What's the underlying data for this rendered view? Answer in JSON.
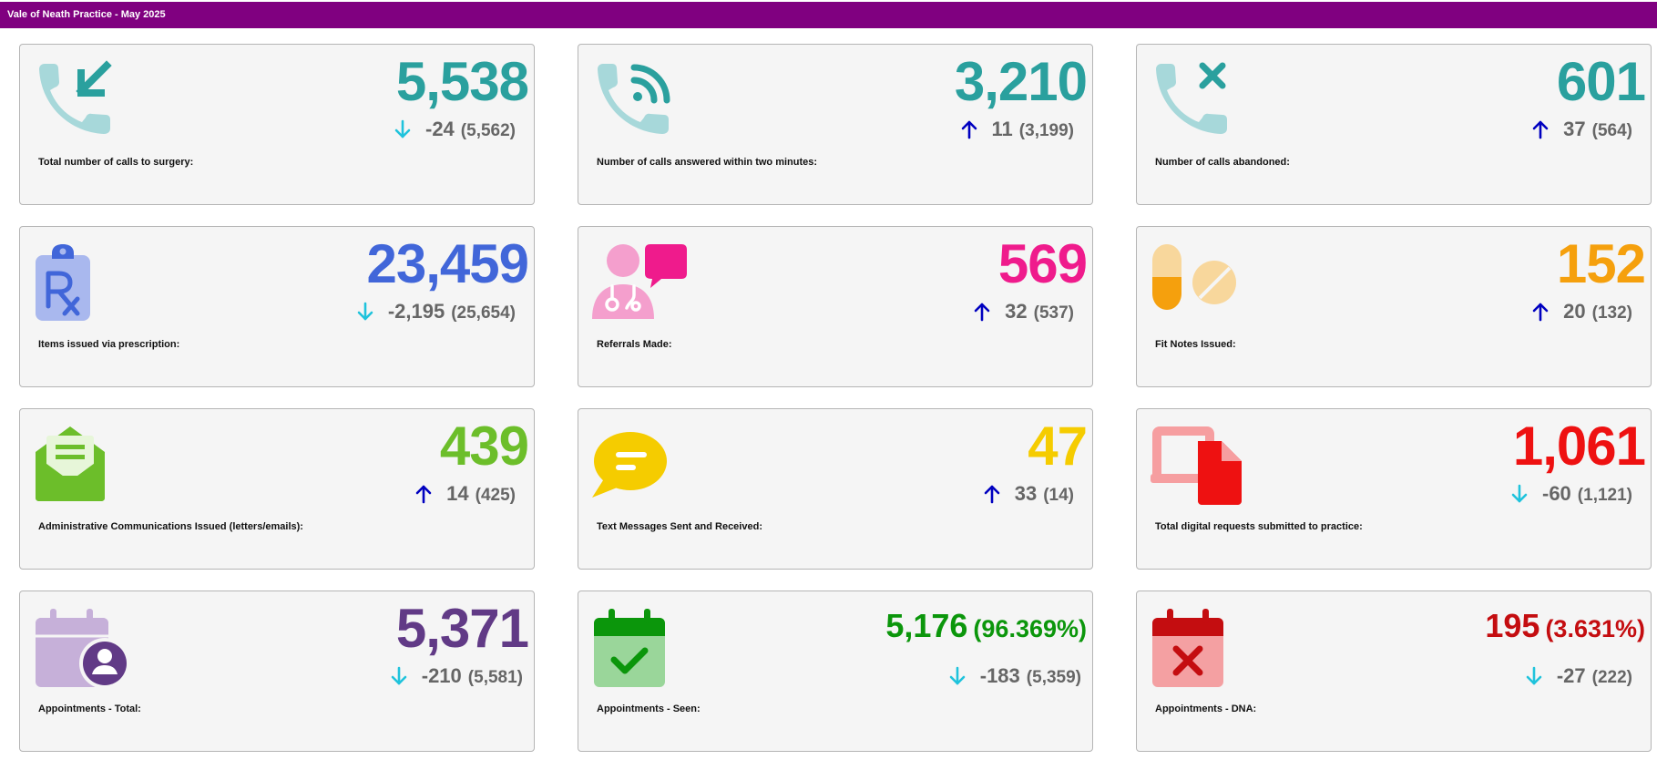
{
  "header": {
    "title": "Vale of Neath Practice - May 2025"
  },
  "colors": {
    "up_arrow": "#0000c0",
    "down_arrow": "#1fc3dc",
    "delta_text": "#666666"
  },
  "cards": [
    {
      "label": "Total number of calls to surgery:",
      "value": "5,538",
      "change": "-24",
      "previous": "(5,562)",
      "direction": "down",
      "color": "#2aa09e",
      "icon": "phone-incoming-icon"
    },
    {
      "label": "Number of calls answered within two minutes:",
      "value": "3,210",
      "change": "11",
      "previous": "(3,199)",
      "direction": "up",
      "color": "#2aa09e",
      "icon": "phone-answered-icon"
    },
    {
      "label": "Number of calls abandoned:",
      "value": "601",
      "change": "37",
      "previous": "(564)",
      "direction": "up",
      "color": "#2aa09e",
      "icon": "phone-missed-icon"
    },
    {
      "label": "Items issued via prescription:",
      "value": "23,459",
      "change": "-2,195",
      "previous": "(25,654)",
      "direction": "down",
      "color": "#4166d9",
      "icon": "prescription-icon"
    },
    {
      "label": "Referrals Made:",
      "value": "569",
      "change": "32",
      "previous": "(537)",
      "direction": "up",
      "color": "#ef1b8c",
      "icon": "doctor-chat-icon"
    },
    {
      "label": "Fit Notes Issued:",
      "value": "152",
      "change": "20",
      "previous": "(132)",
      "direction": "up",
      "color": "#f5a00d",
      "icon": "pills-icon"
    },
    {
      "label": "Administrative Communications Issued (letters/emails):",
      "value": "439",
      "change": "14",
      "previous": "(425)",
      "direction": "up",
      "color": "#6cbe2a",
      "icon": "envelope-letter-icon"
    },
    {
      "label": "Text Messages Sent and Received:",
      "value": "47",
      "change": "33",
      "previous": "(14)",
      "direction": "up",
      "color": "#f5cc00",
      "icon": "speech-bubble-icon"
    },
    {
      "label": "Total digital requests submitted to practice:",
      "value": "1,061",
      "change": "-60",
      "previous": "(1,121)",
      "direction": "down",
      "color": "#ee1111",
      "icon": "laptop-document-icon"
    },
    {
      "label": "Appointments - Total:",
      "value": "5,371",
      "change": "-210",
      "previous": "(5,581)",
      "direction": "down",
      "color": "#613a86",
      "icon": "calendar-user-icon"
    },
    {
      "label": "Appointments - Seen:",
      "value": "5,176",
      "pct": "(96.369%)",
      "change": "-183",
      "previous": "(5,359)",
      "direction": "down",
      "color": "#0b960b",
      "icon": "calendar-check-icon"
    },
    {
      "label": "Appointments - DNA:",
      "value": "195",
      "pct": "(3.631%)",
      "change": "-27",
      "previous": "(222)",
      "direction": "down",
      "color": "#c40d10",
      "icon": "calendar-x-icon"
    }
  ]
}
